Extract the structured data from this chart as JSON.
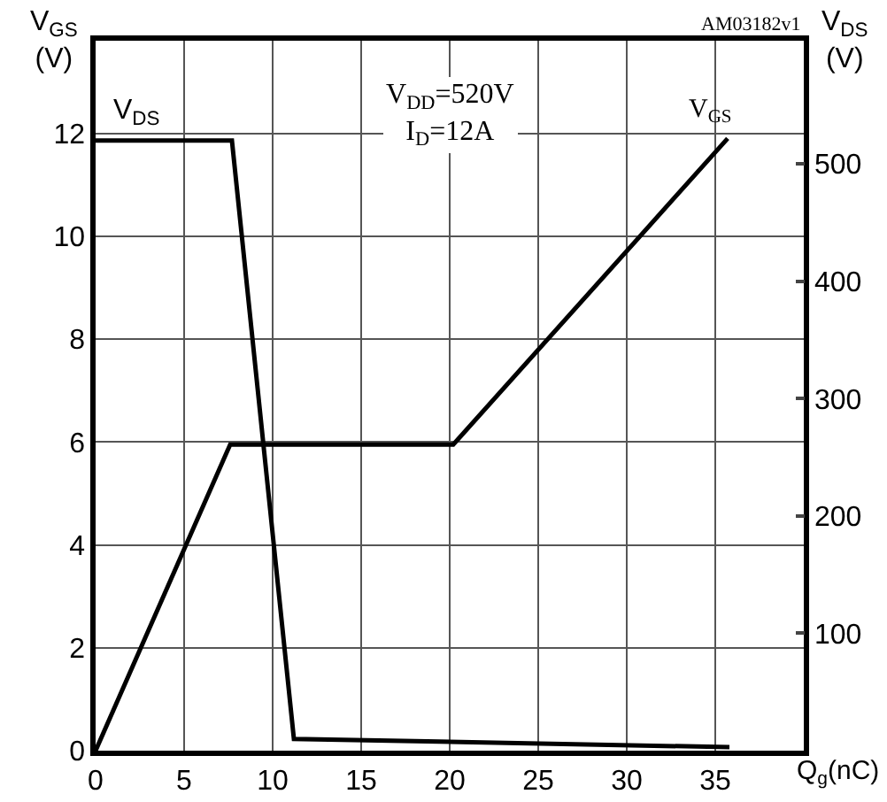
{
  "chart_data": {
    "type": "line",
    "xlabel": "Q$_{g}$(nC)",
    "ylabel": "V$_{GS}$\n(V)",
    "y2label": "V$_{DS}$\n(V)",
    "series": [
      {
        "name": "V$_{DS}$",
        "color": "#000000",
        "axis": "y2",
        "x": [
          0,
          7.7,
          11.2,
          35.8
        ],
        "values": [
          520,
          520,
          10,
          3
        ]
      },
      {
        "name": "V$_{GS}$",
        "color": "#000000",
        "x": [
          0,
          7.6,
          20.2,
          35.7
        ],
        "values": [
          0,
          5.95,
          5.95,
          11.9
        ]
      }
    ],
    "xlim": [
      0,
      40
    ],
    "xticks": [
      0,
      5,
      10,
      15,
      20,
      25,
      30,
      35
    ],
    "ylim": [
      0,
      13.8
    ],
    "yticks": [
      0,
      2,
      4,
      6,
      8,
      10,
      12
    ],
    "y2lim": [
      0,
      605
    ],
    "y2ticks": [
      100,
      200,
      300,
      400,
      500
    ],
    "annotations": [
      "V$_{DD}$=520V\nI$_{D}$=12A",
      "AM03182v1"
    ],
    "grid": true,
    "legend": false,
    "marker": "none",
    "line_style": "solid"
  }
}
